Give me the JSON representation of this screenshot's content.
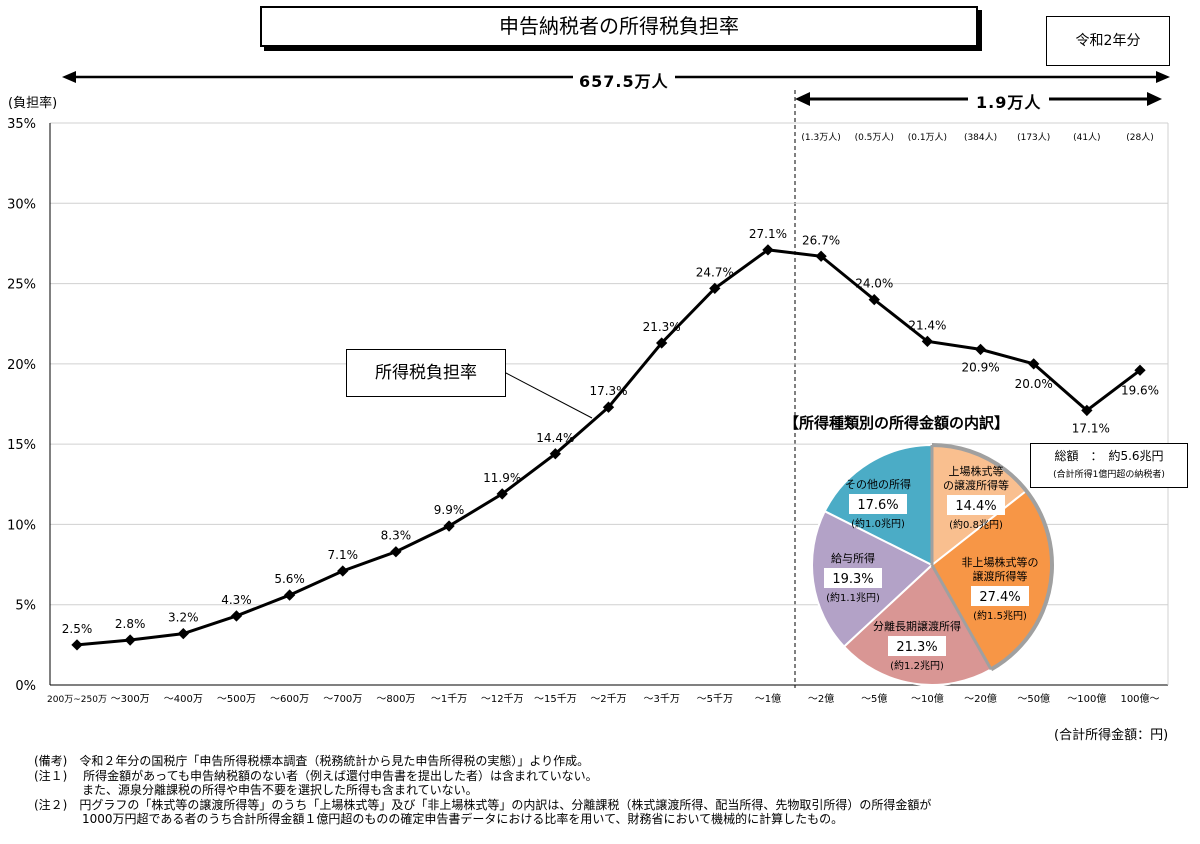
{
  "header": {
    "title": "申告納税者の所得税負担率",
    "year": "令和2年分",
    "total_count": "657.5万人",
    "top_count": "1.9万人",
    "y_axis_label": "(負担率)",
    "x_unit": "(合計所得金額：円)"
  },
  "chart_data": {
    "type": "line",
    "series": [
      {
        "name": "所得税負担率",
        "values": [
          2.5,
          2.8,
          3.2,
          4.3,
          5.6,
          7.1,
          8.3,
          9.9,
          11.9,
          14.4,
          17.3,
          21.3,
          24.7,
          27.1,
          26.7,
          24.0,
          21.4,
          20.9,
          20.0,
          17.1,
          19.6
        ]
      }
    ],
    "categories": [
      "200万~250万",
      "～300万",
      "～400万",
      "～500万",
      "～600万",
      "～700万",
      "～800万",
      "～1千万",
      "～12千万",
      "～15千万",
      "～2千万",
      "～3千万",
      "～5千万",
      "～1億",
      "～2億",
      "～5億",
      "～10億",
      "～20億",
      "～50億",
      "～100億",
      "100億～"
    ],
    "data_labels": [
      "2.5%",
      "2.8%",
      "3.2%",
      "4.3%",
      "5.6%",
      "7.1%",
      "8.3%",
      "9.9%",
      "11.9%",
      "14.4%",
      "17.3%",
      "21.3%",
      "24.7%",
      "27.1%",
      "26.7%",
      "24.0%",
      "21.4%",
      "20.9%",
      "20.0%",
      "17.1%",
      "19.6%"
    ],
    "y_ticks": [
      "0%",
      "5%",
      "10%",
      "15%",
      "20%",
      "25%",
      "30%",
      "35%"
    ],
    "ylim": [
      0,
      35
    ],
    "grid": true,
    "group_counts": [
      "(1.3万人)",
      "(0.5万人)",
      "(0.1万人)",
      "(384人)",
      "(173人)",
      "(41人)",
      "(28人)"
    ]
  },
  "callout": "所得税負担率",
  "pie": {
    "title": "【所得種類別の所得金額の内訳】",
    "total_label": "総額　：　約5.6兆円",
    "total_sub": "(合計所得1億円超の納税者)",
    "slices": [
      {
        "name": "上場株式等の譲渡所得等",
        "line1": "上場株式等",
        "line2": "の譲渡所得等",
        "pct": "14.4%",
        "value": 14.4,
        "amount": "(約0.8兆円)",
        "color": "#f9bf8f"
      },
      {
        "name": "非上場株式等の譲渡所得等",
        "line1": "非上場株式等の",
        "line2": "譲渡所得等",
        "pct": "27.4%",
        "value": 27.4,
        "amount": "(約1.5兆円)",
        "color": "#f79646"
      },
      {
        "name": "分離長期譲渡所得",
        "line1": "分離長期譲渡所得",
        "line2": "",
        "pct": "21.3%",
        "value": 21.3,
        "amount": "(約1.2兆円)",
        "color": "#d99694"
      },
      {
        "name": "給与所得",
        "line1": "給与所得",
        "line2": "",
        "pct": "19.3%",
        "value": 19.3,
        "amount": "(約1.1兆円)",
        "color": "#b3a2c7"
      },
      {
        "name": "その他の所得",
        "line1": "その他の所得",
        "line2": "",
        "pct": "17.6%",
        "value": 17.6,
        "amount": "(約1.0兆円)",
        "color": "#4bacc6"
      }
    ]
  },
  "notes": [
    "(備考)　令和２年分の国税庁「申告所得税標本調査（税務統計から見た申告所得税の実態）」より作成。",
    "(注１)　 所得金額があっても申告納税額のない者（例えば還付申告書を提出した者）は含まれていない。",
    "　　　　また、源泉分離課税の所得や申告不要を選択した所得も含まれていない。",
    "(注２)　円グラフの「株式等の譲渡所得等」のうち「上場株式等」及び「非上場株式等」の内訳は、分離課税（株式譲渡所得、配当所得、先物取引所得）の所得金額が",
    "　　　　1000万円超である者のうち合計所得金額１億円超のものの確定申告書データにおける比率を用いて、財務省において機械的に計算したもの。"
  ]
}
